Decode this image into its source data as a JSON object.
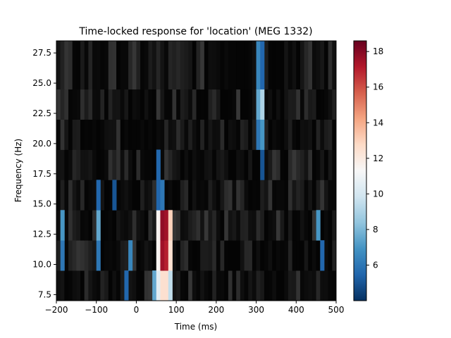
{
  "chart_data": {
    "type": "heatmap",
    "title": "Time-locked response for 'location' (MEG 1332)",
    "xlabel": "Time (ms)",
    "ylabel": "Frequency (Hz)",
    "xlim": [
      -200,
      500
    ],
    "ylim": [
      7,
      28.5
    ],
    "xticks": [
      -200,
      -100,
      0,
      100,
      200,
      300,
      400,
      500
    ],
    "xtick_labels": [
      "−200",
      "−100",
      "0",
      "100",
      "200",
      "300",
      "400",
      "500"
    ],
    "yticks": [
      7.5,
      10.0,
      12.5,
      15.0,
      17.5,
      20.0,
      22.5,
      25.0,
      27.5
    ],
    "ytick_labels": [
      "7.5",
      "10.0",
      "12.5",
      "15.0",
      "17.5",
      "20.0",
      "22.5",
      "25.0",
      "27.5"
    ],
    "colorbar": {
      "range": [
        4,
        18.6
      ],
      "ticks": [
        6,
        8,
        10,
        12,
        14,
        16,
        18
      ],
      "tick_labels": [
        "6",
        "8",
        "10",
        "12",
        "14",
        "16",
        "18"
      ],
      "colormap": "RdBu_r (masked values in grayscale)"
    },
    "frequency_bands": [
      {
        "fmin": 7.0,
        "fmax": 9.5
      },
      {
        "fmin": 9.5,
        "fmax": 12.0
      },
      {
        "fmin": 12.0,
        "fmax": 14.5
      },
      {
        "fmin": 14.5,
        "fmax": 17.0
      },
      {
        "fmin": 17.0,
        "fmax": 19.5
      },
      {
        "fmin": 19.5,
        "fmax": 22.0
      },
      {
        "fmin": 22.0,
        "fmax": 24.5
      },
      {
        "fmin": 24.5,
        "fmax": 28.5
      }
    ],
    "significant_clusters": [
      {
        "band": 0,
        "t0": -30,
        "t1": -20,
        "value": 5.5
      },
      {
        "band": 0,
        "t0": 40,
        "t1": 50,
        "value": 7.5
      },
      {
        "band": 0,
        "t0": 50,
        "t1": 60,
        "value": 10.5
      },
      {
        "band": 0,
        "t0": 60,
        "t1": 70,
        "value": 12.5
      },
      {
        "band": 0,
        "t0": 70,
        "t1": 80,
        "value": 12.5
      },
      {
        "band": 0,
        "t0": 80,
        "t1": 90,
        "value": 9.5
      },
      {
        "band": 1,
        "t0": -190,
        "t1": -180,
        "value": 6.0
      },
      {
        "band": 1,
        "t0": -100,
        "t1": -90,
        "value": 6.0
      },
      {
        "band": 1,
        "t0": -20,
        "t1": -10,
        "value": 6.5
      },
      {
        "band": 1,
        "t0": 50,
        "t1": 60,
        "value": 11.5
      },
      {
        "band": 1,
        "t0": 60,
        "t1": 70,
        "value": 17.5
      },
      {
        "band": 1,
        "t0": 70,
        "t1": 80,
        "value": 17.0
      },
      {
        "band": 1,
        "t0": 80,
        "t1": 90,
        "value": 12.5
      },
      {
        "band": 1,
        "t0": 460,
        "t1": 470,
        "value": 5.5
      },
      {
        "band": 2,
        "t0": -190,
        "t1": -180,
        "value": 7.0
      },
      {
        "band": 2,
        "t0": -100,
        "t1": -90,
        "value": 7.5
      },
      {
        "band": 2,
        "t0": 50,
        "t1": 60,
        "value": 11.5
      },
      {
        "band": 2,
        "t0": 60,
        "t1": 70,
        "value": 17.8
      },
      {
        "band": 2,
        "t0": 70,
        "t1": 80,
        "value": 17.5
      },
      {
        "band": 2,
        "t0": 80,
        "t1": 90,
        "value": 13.0
      },
      {
        "band": 2,
        "t0": 450,
        "t1": 460,
        "value": 7.0
      },
      {
        "band": 3,
        "t0": -100,
        "t1": -90,
        "value": 5.5
      },
      {
        "band": 3,
        "t0": -60,
        "t1": -50,
        "value": 5.0
      },
      {
        "band": 3,
        "t0": 50,
        "t1": 60,
        "value": 5.5
      },
      {
        "band": 3,
        "t0": 60,
        "t1": 70,
        "value": 6.0
      },
      {
        "band": 4,
        "t0": 50,
        "t1": 60,
        "value": 5.5
      },
      {
        "band": 4,
        "t0": 310,
        "t1": 320,
        "value": 5.0
      },
      {
        "band": 5,
        "t0": 300,
        "t1": 310,
        "value": 6.0
      },
      {
        "band": 5,
        "t0": 310,
        "t1": 320,
        "value": 7.0
      },
      {
        "band": 6,
        "t0": 300,
        "t1": 310,
        "value": 7.5
      },
      {
        "band": 6,
        "t0": 310,
        "t1": 320,
        "value": 9.0
      },
      {
        "band": 7,
        "t0": 300,
        "t1": 310,
        "value": 6.5
      },
      {
        "band": 7,
        "t0": 310,
        "t1": 320,
        "value": 5.5
      }
    ]
  }
}
